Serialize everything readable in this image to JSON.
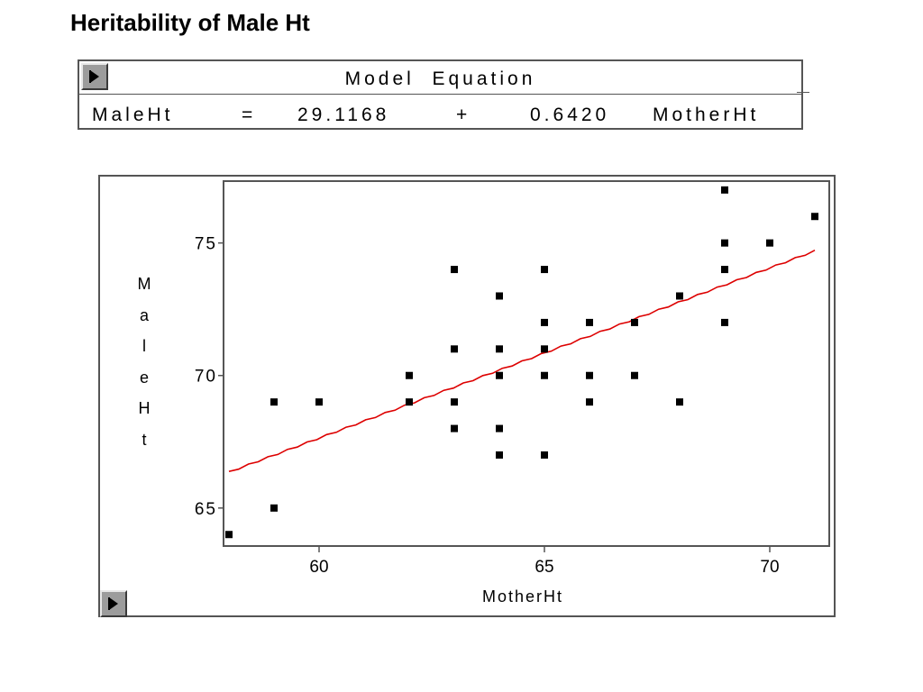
{
  "title": "Heritability of Male Ht",
  "equation_panel": {
    "header": "Model  Equation",
    "response": "MaleHt",
    "equals": "=",
    "intercept": "29.1168",
    "plus": "+",
    "slope": "0.6420",
    "predictor": "MotherHt"
  },
  "chart_data": {
    "type": "scatter",
    "title": "",
    "xlabel": "MotherHt",
    "ylabel": "MaleHt",
    "xlim": [
      57.9,
      71.3
    ],
    "ylim": [
      63.6,
      77.3
    ],
    "xticks": [
      60,
      65,
      70
    ],
    "yticks": [
      65,
      70,
      75
    ],
    "grid": false,
    "legend": "none",
    "series": [
      {
        "type": "scatter",
        "marker": "square",
        "color": "#000000",
        "points": [
          [
            58,
            64
          ],
          [
            59,
            65
          ],
          [
            59,
            69
          ],
          [
            60,
            69
          ],
          [
            62,
            70
          ],
          [
            62,
            69
          ],
          [
            63,
            74
          ],
          [
            63,
            71
          ],
          [
            63,
            69
          ],
          [
            63,
            68
          ],
          [
            64,
            73
          ],
          [
            64,
            71
          ],
          [
            64,
            70
          ],
          [
            64,
            68
          ],
          [
            64,
            67
          ],
          [
            65,
            74
          ],
          [
            65,
            72
          ],
          [
            65,
            71
          ],
          [
            65,
            70
          ],
          [
            65,
            67
          ],
          [
            66,
            72
          ],
          [
            66,
            70
          ],
          [
            66,
            69
          ],
          [
            67,
            72
          ],
          [
            67,
            70
          ],
          [
            68,
            73
          ],
          [
            68,
            69
          ],
          [
            69,
            77
          ],
          [
            69,
            75
          ],
          [
            69,
            74
          ],
          [
            69,
            72
          ],
          [
            70,
            75
          ],
          [
            71,
            76
          ]
        ]
      },
      {
        "type": "line",
        "color": "#dd0000",
        "intercept": 29.1168,
        "slope": 0.642,
        "x_range": [
          58,
          71
        ]
      }
    ]
  },
  "colors": {
    "fit_line": "#dd0000",
    "points": "#000000",
    "frame": "#555555"
  }
}
